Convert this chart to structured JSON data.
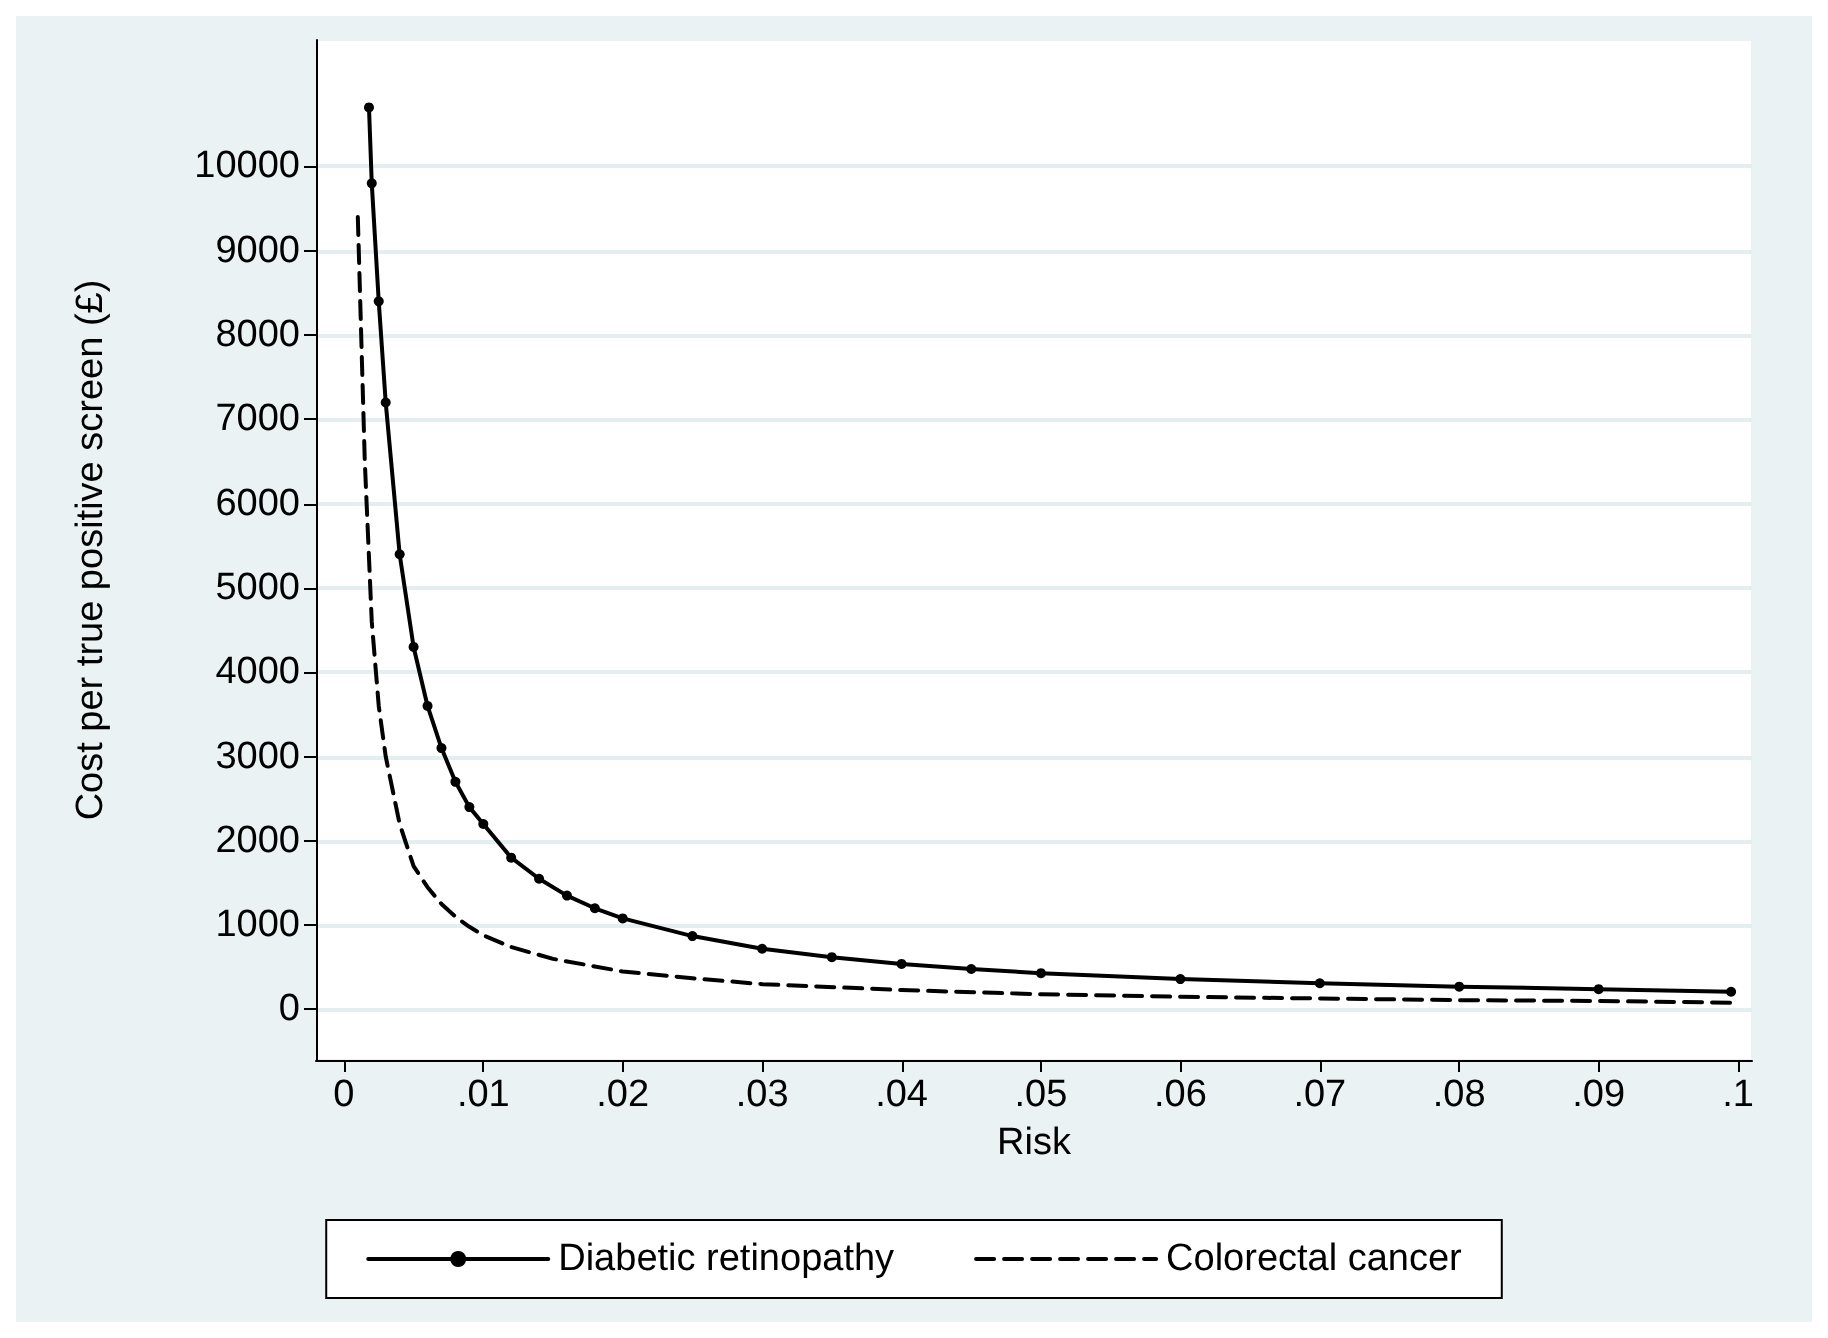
{
  "chart_data": {
    "type": "line",
    "xlabel": "Risk",
    "ylabel": "Cost per true positive screen (£)",
    "xlim": [
      -0.002,
      0.101
    ],
    "ylim": [
      -600,
      11500
    ],
    "xticks": [
      0,
      {
        "value": 0.01,
        "label": ".01"
      },
      {
        "value": 0.02,
        "label": ".02"
      },
      {
        "value": 0.03,
        "label": ".03"
      },
      {
        "value": 0.04,
        "label": ".04"
      },
      {
        "value": 0.05,
        "label": ".05"
      },
      {
        "value": 0.06,
        "label": ".06"
      },
      {
        "value": 0.07,
        "label": ".07"
      },
      {
        "value": 0.08,
        "label": ".08"
      },
      {
        "value": 0.09,
        "label": ".09"
      },
      {
        "value": 0.1,
        "label": ".1"
      }
    ],
    "yticks": [
      0,
      1000,
      2000,
      3000,
      4000,
      5000,
      6000,
      7000,
      8000,
      9000,
      10000
    ],
    "grid": "y",
    "legend": "bottom",
    "series": [
      {
        "name": "Diabetic retinopathy",
        "color": "#000000",
        "marker": "circle",
        "line_style": "solid",
        "x": [
          0.0018,
          0.002,
          0.0025,
          0.003,
          0.004,
          0.005,
          0.006,
          0.007,
          0.008,
          0.009,
          0.01,
          0.012,
          0.014,
          0.016,
          0.018,
          0.02,
          0.025,
          0.03,
          0.035,
          0.04,
          0.045,
          0.05,
          0.06,
          0.07,
          0.08,
          0.09,
          0.0995
        ],
        "values": [
          10700,
          9800,
          8400,
          7200,
          5400,
          4300,
          3600,
          3100,
          2700,
          2400,
          2200,
          1800,
          1550,
          1350,
          1200,
          1080,
          870,
          720,
          620,
          540,
          480,
          430,
          360,
          310,
          270,
          240,
          210
        ]
      },
      {
        "name": "Colorectal cancer",
        "color": "#000000",
        "marker": "none",
        "line_style": "dashed",
        "x": [
          0.001,
          0.0015,
          0.002,
          0.0025,
          0.003,
          0.004,
          0.005,
          0.006,
          0.007,
          0.008,
          0.009,
          0.01,
          0.012,
          0.015,
          0.02,
          0.025,
          0.03,
          0.04,
          0.05,
          0.06,
          0.07,
          0.08,
          0.09,
          0.0995
        ],
        "values": [
          9400,
          6500,
          4600,
          3600,
          3000,
          2200,
          1700,
          1450,
          1250,
          1100,
          980,
          880,
          740,
          600,
          450,
          370,
          300,
          230,
          180,
          150,
          130,
          110,
          100,
          80
        ]
      }
    ]
  }
}
